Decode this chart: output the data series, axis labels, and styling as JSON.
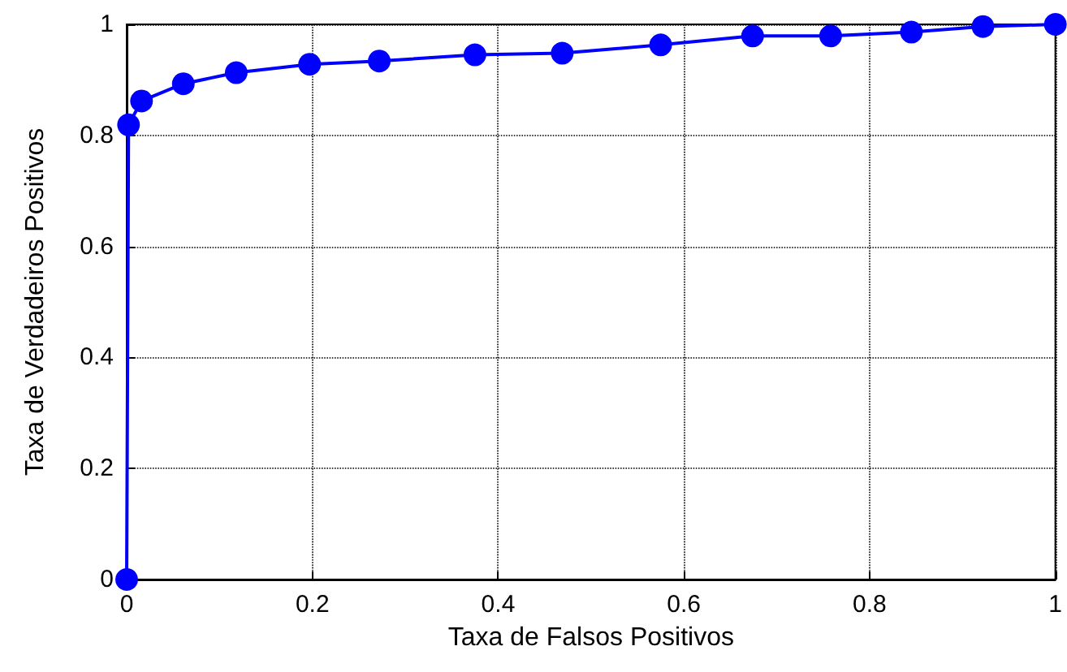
{
  "chart_data": {
    "type": "line",
    "xlabel": "Taxa de Falsos Positivos",
    "ylabel": "Taxa de Verdadeiros Positivos",
    "x": [
      0,
      0.002,
      0.016,
      0.061,
      0.118,
      0.197,
      0.272,
      0.375,
      0.469,
      0.575,
      0.674,
      0.758,
      0.845,
      0.922,
      1
    ],
    "series": [
      {
        "color": "#0000ff",
        "values": [
          0,
          0.819,
          0.862,
          0.893,
          0.913,
          0.928,
          0.934,
          0.945,
          0.948,
          0.963,
          0.979,
          0.979,
          0.986,
          0.996,
          1
        ]
      }
    ],
    "xlim": [
      0,
      1
    ],
    "xticks": [
      0,
      0.2,
      0.4,
      0.6,
      0.8,
      1
    ],
    "ylim": [
      0,
      1
    ],
    "yticks": [
      0,
      0.2,
      0.4,
      0.6,
      0.8,
      1
    ],
    "grid": true,
    "marker": "circle",
    "line_style": "solid"
  }
}
